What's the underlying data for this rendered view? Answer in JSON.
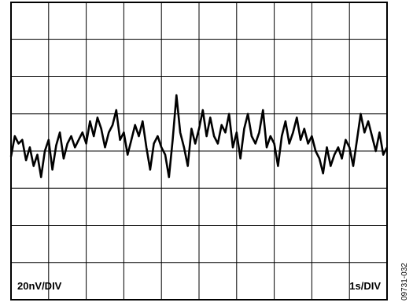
{
  "figure_id": "09731-032",
  "colors": {
    "trace": "#000000",
    "grid": "#000000",
    "background": "#ffffff"
  },
  "chart_data": {
    "type": "line",
    "title": "",
    "x_scale_label": "1s/DIV",
    "y_scale_label": "20nV/DIV",
    "x_divisions": 10,
    "y_divisions": 8,
    "xlim": [
      0,
      10
    ],
    "ylim": [
      -80,
      80
    ],
    "grid": true,
    "series": [
      {
        "x": [
          0,
          0.1,
          0.2,
          0.3,
          0.4,
          0.5,
          0.6,
          0.7,
          0.8,
          0.9,
          1.0,
          1.1,
          1.2,
          1.3,
          1.4,
          1.5,
          1.6,
          1.7,
          1.8,
          1.9,
          2.0,
          2.1,
          2.2,
          2.3,
          2.4,
          2.5,
          2.6,
          2.7,
          2.8,
          2.9,
          3.0,
          3.1,
          3.2,
          3.3,
          3.4,
          3.5,
          3.6,
          3.7,
          3.8,
          3.9,
          4.0,
          4.1,
          4.2,
          4.3,
          4.4,
          4.5,
          4.6,
          4.7,
          4.8,
          4.9,
          5.0,
          5.1,
          5.2,
          5.3,
          5.4,
          5.5,
          5.6,
          5.7,
          5.8,
          5.9,
          6.0,
          6.1,
          6.2,
          6.3,
          6.4,
          6.5,
          6.6,
          6.7,
          6.8,
          6.9,
          7.0,
          7.1,
          7.2,
          7.3,
          7.4,
          7.5,
          7.6,
          7.7,
          7.8,
          7.9,
          8.0,
          8.1,
          8.2,
          8.3,
          8.4,
          8.5,
          8.6,
          8.7,
          8.8,
          8.9,
          9.0,
          9.1,
          9.2,
          9.3,
          9.4,
          9.5,
          9.6,
          9.7,
          9.8,
          9.9,
          10.0
        ],
        "values": [
          -3,
          8,
          4,
          6,
          -5,
          2,
          -8,
          -2,
          -14,
          0,
          6,
          -10,
          3,
          10,
          -4,
          4,
          8,
          2,
          6,
          10,
          4,
          16,
          8,
          18,
          12,
          2,
          10,
          14,
          22,
          6,
          10,
          -2,
          6,
          14,
          8,
          16,
          2,
          -10,
          4,
          8,
          2,
          -2,
          -14,
          6,
          30,
          10,
          2,
          -8,
          12,
          4,
          12,
          22,
          8,
          18,
          8,
          4,
          14,
          10,
          20,
          2,
          10,
          -4,
          12,
          20,
          8,
          4,
          10,
          22,
          2,
          8,
          4,
          -8,
          8,
          16,
          4,
          10,
          18,
          6,
          12,
          4,
          8,
          0,
          -4,
          -12,
          2,
          -8,
          -2,
          2,
          -4,
          6,
          2,
          -8,
          6,
          20,
          10,
          16,
          8,
          0,
          10,
          -2,
          2
        ]
      }
    ]
  }
}
